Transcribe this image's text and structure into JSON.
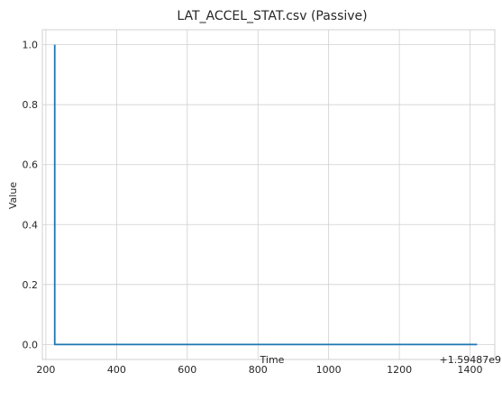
{
  "chart_data": {
    "type": "line",
    "title": "LAT_ACCEL_STAT.csv (Passive)",
    "xlabel": "Time",
    "ylabel": "Value",
    "x_offset_label": "+1.59487e9",
    "xlim": [
      190,
      1470
    ],
    "ylim": [
      -0.05,
      1.05
    ],
    "x_ticks": [
      200,
      400,
      600,
      800,
      1000,
      1200,
      1400
    ],
    "x_tick_labels": [
      "200",
      "400",
      "600",
      "800",
      "1000",
      "1200",
      "1400"
    ],
    "y_ticks": [
      0.0,
      0.2,
      0.4,
      0.6,
      0.8,
      1.0
    ],
    "y_tick_labels": [
      "0.0",
      "0.2",
      "0.4",
      "0.6",
      "0.8",
      "1.0"
    ],
    "grid": true,
    "series": [
      {
        "color": "#1f77b4",
        "x": [
          225,
          225,
          1420
        ],
        "y": [
          1.0,
          0.0,
          0.0
        ]
      }
    ]
  }
}
